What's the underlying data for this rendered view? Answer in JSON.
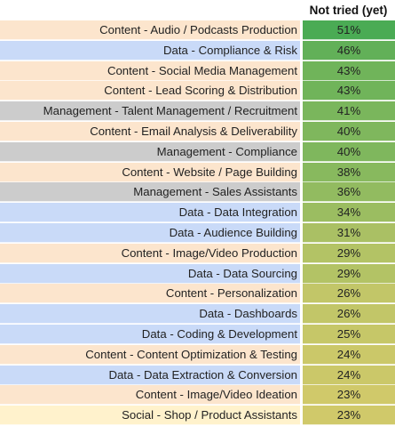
{
  "header": {
    "value_col_label": "Not tried (yet)"
  },
  "colors": {
    "Content": "#fce5cd",
    "Data": "#c9daf8",
    "Management": "#cccccc",
    "Social": "#fff2cc"
  },
  "chart_data": {
    "type": "table",
    "columns": [
      "",
      "Not tried (yet)"
    ],
    "rows": [
      {
        "label": "Content - Audio / Podcasts Production",
        "category": "Content",
        "value": 51,
        "display": "51%"
      },
      {
        "label": "Data -  Compliance & Risk",
        "category": "Data",
        "value": 46,
        "display": "46%"
      },
      {
        "label": "Content - Social Media Management",
        "category": "Content",
        "value": 43,
        "display": "43%"
      },
      {
        "label": "Content - Lead Scoring & Distribution",
        "category": "Content",
        "value": 43,
        "display": "43%"
      },
      {
        "label": "Management - Talent Management / Recruitment",
        "category": "Management",
        "value": 41,
        "display": "41%"
      },
      {
        "label": "Content - Email Analysis & Deliverability",
        "category": "Content",
        "value": 40,
        "display": "40%"
      },
      {
        "label": "Management - Compliance",
        "category": "Management",
        "value": 40,
        "display": "40%"
      },
      {
        "label": "Content - Website / Page Building",
        "category": "Content",
        "value": 38,
        "display": "38%"
      },
      {
        "label": "Management - Sales Assistants",
        "category": "Management",
        "value": 36,
        "display": "36%"
      },
      {
        "label": "Data - Data Integration",
        "category": "Data",
        "value": 34,
        "display": "34%"
      },
      {
        "label": "Data - Audience Building",
        "category": "Data",
        "value": 31,
        "display": "31%"
      },
      {
        "label": "Content - Image/Video Production",
        "category": "Content",
        "value": 29,
        "display": "29%"
      },
      {
        "label": "Data - Data Sourcing",
        "category": "Data",
        "value": 29,
        "display": "29%"
      },
      {
        "label": "Content - Personalization",
        "category": "Content",
        "value": 26,
        "display": "26%"
      },
      {
        "label": "Data - Dashboards",
        "category": "Data",
        "value": 26,
        "display": "26%"
      },
      {
        "label": "Data - Coding & Development",
        "category": "Data",
        "value": 25,
        "display": "25%"
      },
      {
        "label": "Content - Content Optimization & Testing",
        "category": "Content",
        "value": 24,
        "display": "24%"
      },
      {
        "label": "Data - Data Extraction & Conversion",
        "category": "Data",
        "value": 24,
        "display": "24%"
      },
      {
        "label": "Content - Image/Video Ideation",
        "category": "Content",
        "value": 23,
        "display": "23%"
      },
      {
        "label": "Social - Shop / Product Assistants",
        "category": "Social",
        "value": 23,
        "display": "23%"
      }
    ],
    "color_scale": {
      "min_value": 23,
      "max_value": 51,
      "min_color": "#d0c96a",
      "max_color": "#4aab54"
    }
  }
}
